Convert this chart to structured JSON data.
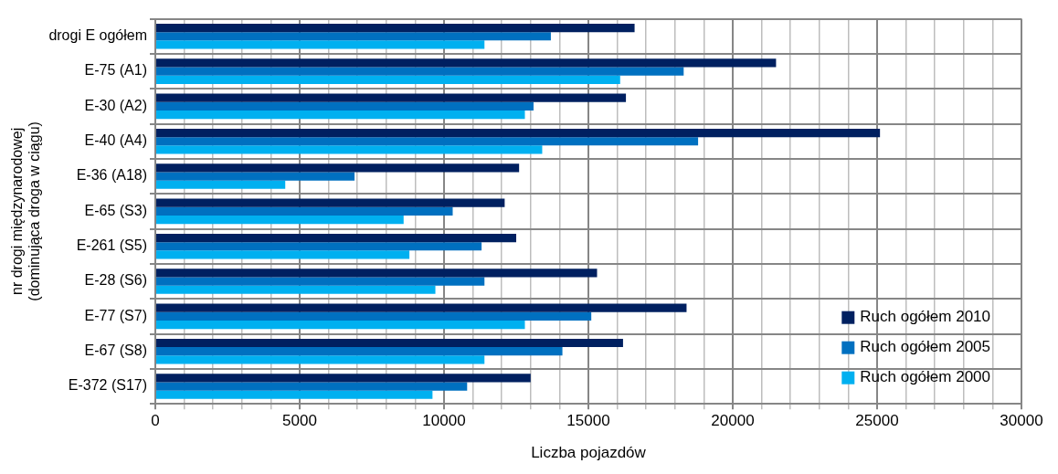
{
  "chart_data": {
    "type": "bar",
    "orientation": "horizontal",
    "xlabel": "Liczba pojazdów",
    "ylabel": "nr drogi międzynarodowej\n(dominująca droga w ciągu)",
    "categories": [
      "drogi E ogółem",
      "E-75 (A1)",
      "E-30 (A2)",
      "E-40 (A4)",
      "E-36 (A18)",
      "E-65 (S3)",
      "E-261 (S5)",
      "E-28 (S6)",
      "E-77 (S7)",
      "E-67 (S8)",
      "E-372 (S17)"
    ],
    "series": [
      {
        "name": "Ruch ogółem 2010",
        "color": "#002060",
        "values": [
          16600,
          21500,
          16300,
          25100,
          12600,
          12100,
          12500,
          15300,
          18400,
          16200,
          13000
        ]
      },
      {
        "name": "Ruch ogółem 2005",
        "color": "#0070c0",
        "values": [
          13700,
          18300,
          13100,
          18800,
          6900,
          10300,
          11300,
          11400,
          15100,
          14100,
          10800
        ]
      },
      {
        "name": "Ruch ogółem 2000",
        "color": "#00b0f0",
        "values": [
          11400,
          16100,
          12800,
          13400,
          4500,
          8600,
          8800,
          9700,
          12800,
          11400,
          9600
        ]
      }
    ],
    "xlim": [
      0,
      30000
    ],
    "xticks": [
      0,
      {
        "value": 1000,
        "label": null
      },
      {
        "value": 2000,
        "label": null
      },
      {
        "value": 3000,
        "label": null
      },
      {
        "value": 4000,
        "label": null
      },
      5000,
      {
        "value": 6000,
        "label": null
      },
      {
        "value": 7000,
        "label": null
      },
      {
        "value": 8000,
        "label": null
      },
      {
        "value": 9000,
        "label": null
      },
      10000,
      {
        "value": 11000,
        "label": null
      },
      {
        "value": 12000,
        "label": null
      },
      {
        "value": 13000,
        "label": null
      },
      {
        "value": 14000,
        "label": null
      },
      15000,
      {
        "value": 16000,
        "label": null
      },
      {
        "value": 17000,
        "label": null
      },
      {
        "value": 18000,
        "label": null
      },
      {
        "value": 19000,
        "label": null
      },
      20000,
      {
        "value": 21000,
        "label": null
      },
      {
        "value": 22000,
        "label": null
      },
      {
        "value": 23000,
        "label": null
      },
      {
        "value": 24000,
        "label": null
      },
      25000,
      {
        "value": 26000,
        "label": null
      },
      {
        "value": 27000,
        "label": null
      },
      {
        "value": 28000,
        "label": null
      },
      {
        "value": 29000,
        "label": null
      },
      30000
    ],
    "grid": true,
    "legend": "bottom right"
  }
}
